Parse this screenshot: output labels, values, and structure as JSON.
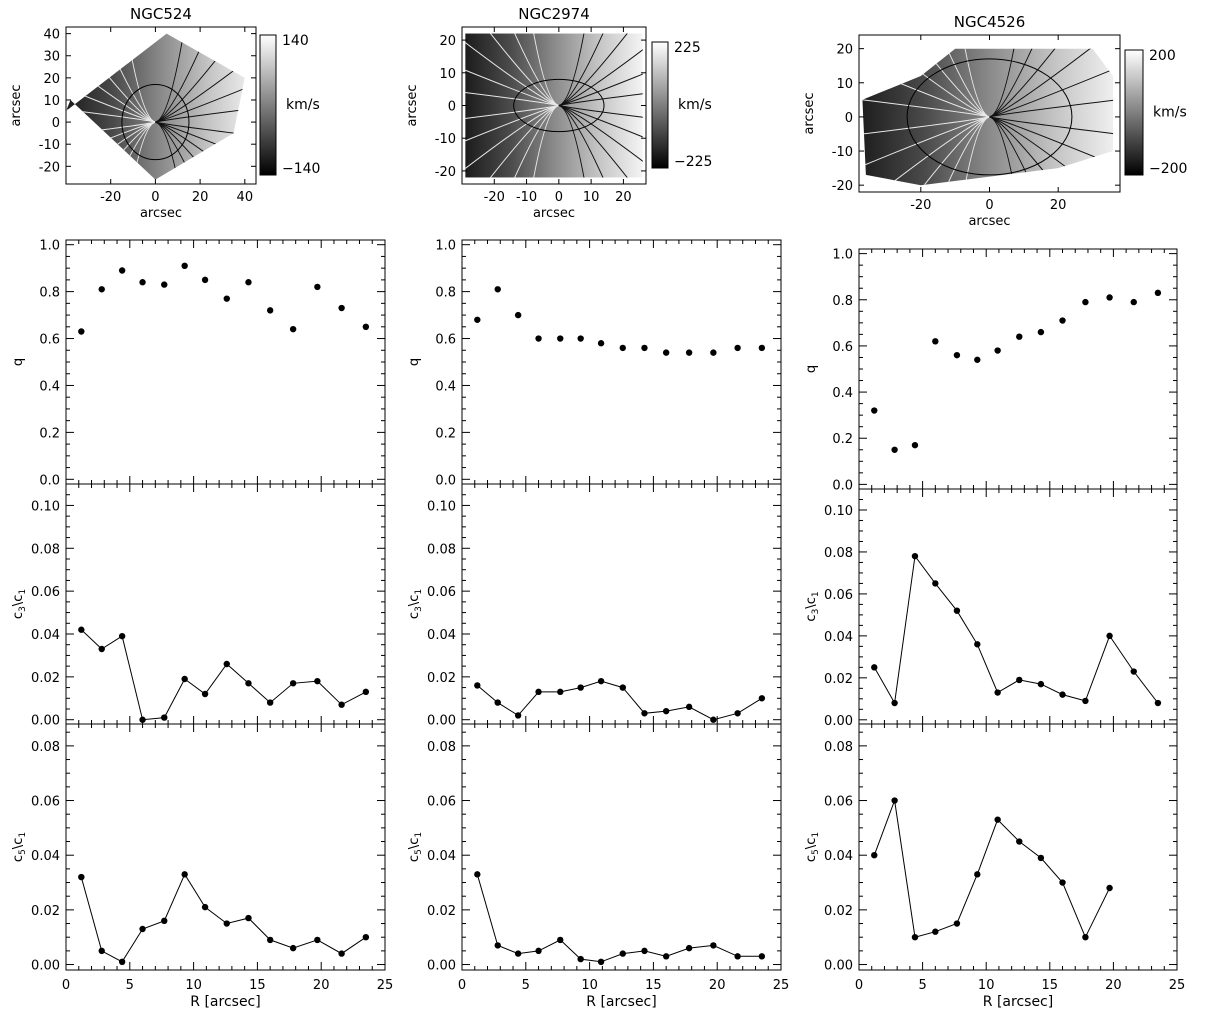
{
  "chart_data": [
    {
      "type": "heatmap",
      "title": "NGC524",
      "xlabel": "arcsec",
      "ylabel": "arcsec",
      "xlim": [
        -40,
        45
      ],
      "ylim": [
        -28,
        43
      ],
      "xticks": [
        -20,
        0,
        20,
        40
      ],
      "yticks": [
        -20,
        -10,
        0,
        10,
        20,
        30,
        40
      ],
      "colorbar": {
        "unit": "km/s",
        "max_label": "140",
        "min_label": "−140",
        "max": 140,
        "min": -140
      }
    },
    {
      "type": "heatmap",
      "title": "NGC2974",
      "xlabel": "arcsec",
      "ylabel": "arcsec",
      "xlim": [
        -30,
        27
      ],
      "ylim": [
        -24,
        24
      ],
      "xticks": [
        -20,
        -10,
        0,
        10,
        20
      ],
      "yticks": [
        -20,
        -10,
        0,
        10,
        20
      ],
      "colorbar": {
        "unit": "km/s",
        "max_label": "225",
        "min_label": "−225",
        "max": 225,
        "min": -225
      }
    },
    {
      "type": "heatmap",
      "title": "NGC4526",
      "xlabel": "arcsec",
      "ylabel": "arcsec",
      "xlim": [
        -38,
        38
      ],
      "ylim": [
        -22,
        24
      ],
      "xticks": [
        -20,
        0,
        20
      ],
      "yticks": [
        -20,
        -10,
        0,
        10,
        20
      ],
      "colorbar": {
        "unit": "km/s",
        "max_label": "200",
        "min_label": "−200",
        "max": 200,
        "min": -200
      }
    },
    {
      "type": "scatter",
      "galaxy": "NGC524",
      "ylabel": "q",
      "ylim": [
        -0.02,
        1.02
      ],
      "yticks": [
        0.0,
        0.2,
        0.4,
        0.6,
        0.8,
        1.0
      ],
      "x": [
        1.2,
        2.8,
        4.4,
        6.0,
        7.7,
        9.3,
        10.9,
        12.6,
        14.3,
        16.0,
        17.8,
        19.7,
        21.6,
        23.5
      ],
      "y": [
        0.63,
        0.81,
        0.89,
        0.84,
        0.83,
        0.91,
        0.85,
        0.77,
        0.84,
        0.72,
        0.64,
        0.82,
        0.73,
        0.65
      ]
    },
    {
      "type": "scatter",
      "galaxy": "NGC2974",
      "ylabel": "q",
      "ylim": [
        -0.02,
        1.02
      ],
      "yticks": [
        0.0,
        0.2,
        0.4,
        0.6,
        0.8,
        1.0
      ],
      "x": [
        1.2,
        2.8,
        4.4,
        6.0,
        7.7,
        9.3,
        10.9,
        12.6,
        14.3,
        16.0,
        17.8,
        19.7,
        21.6,
        23.5
      ],
      "y": [
        0.68,
        0.81,
        0.7,
        0.6,
        0.6,
        0.6,
        0.58,
        0.56,
        0.56,
        0.54,
        0.54,
        0.54,
        0.56,
        0.56
      ]
    },
    {
      "type": "scatter",
      "galaxy": "NGC4526",
      "ylabel": "q",
      "ylim": [
        -0.02,
        1.02
      ],
      "yticks": [
        0.0,
        0.2,
        0.4,
        0.6,
        0.8,
        1.0
      ],
      "x": [
        1.2,
        2.8,
        4.4,
        6.0,
        7.7,
        9.3,
        10.9,
        12.6,
        14.3,
        16.0,
        17.8,
        19.7,
        21.6,
        23.5
      ],
      "y": [
        0.32,
        0.15,
        0.17,
        0.62,
        0.56,
        0.54,
        0.58,
        0.64,
        0.66,
        0.71,
        0.79,
        0.81,
        0.79,
        0.83
      ]
    },
    {
      "type": "line",
      "galaxy": "NGC524",
      "ylabel": "c3/c1",
      "ylim": [
        -0.002,
        0.11
      ],
      "yticks": [
        0.0,
        0.02,
        0.04,
        0.06,
        0.08,
        0.1
      ],
      "x": [
        1.2,
        2.8,
        4.4,
        6.0,
        7.7,
        9.3,
        10.9,
        12.6,
        14.3,
        16.0,
        17.8,
        19.7,
        21.6,
        23.5
      ],
      "y": [
        0.042,
        0.033,
        0.039,
        0.0,
        0.001,
        0.019,
        0.012,
        0.026,
        0.017,
        0.008,
        0.017,
        0.018,
        0.007,
        0.013
      ]
    },
    {
      "type": "line",
      "galaxy": "NGC2974",
      "ylabel": "c3/c1",
      "ylim": [
        -0.002,
        0.11
      ],
      "yticks": [
        0.0,
        0.02,
        0.04,
        0.06,
        0.08,
        0.1
      ],
      "x": [
        1.2,
        2.8,
        4.4,
        6.0,
        7.7,
        9.3,
        10.9,
        12.6,
        14.3,
        16.0,
        17.8,
        19.7,
        21.6,
        23.5
      ],
      "y": [
        0.016,
        0.008,
        0.002,
        0.013,
        0.013,
        0.015,
        0.018,
        0.015,
        0.003,
        0.004,
        0.006,
        0.0,
        0.003,
        0.01
      ]
    },
    {
      "type": "line",
      "galaxy": "NGC4526",
      "ylabel": "c3/c1",
      "ylim": [
        -0.002,
        0.11
      ],
      "yticks": [
        0.0,
        0.02,
        0.04,
        0.06,
        0.08,
        0.1
      ],
      "x": [
        1.2,
        2.8,
        4.4,
        6.0,
        7.7,
        9.3,
        10.9,
        12.6,
        14.3,
        16.0,
        17.8,
        19.7,
        21.6,
        23.5
      ],
      "y": [
        0.025,
        0.008,
        0.078,
        0.065,
        0.052,
        0.036,
        0.013,
        0.019,
        0.017,
        0.012,
        0.009,
        0.04,
        0.023,
        0.008
      ]
    },
    {
      "type": "line",
      "galaxy": "NGC524",
      "ylabel": "c5/c1",
      "ylim": [
        -0.002,
        0.088
      ],
      "yticks": [
        0.0,
        0.02,
        0.04,
        0.06,
        0.08
      ],
      "xlabel": "R [arcsec]",
      "xlim": [
        0,
        25
      ],
      "xticks": [
        0,
        5,
        10,
        15,
        20,
        25
      ],
      "x": [
        1.2,
        2.8,
        4.4,
        6.0,
        7.7,
        9.3,
        10.9,
        12.6,
        14.3,
        16.0,
        17.8,
        19.7,
        21.6,
        23.5
      ],
      "y": [
        0.032,
        0.005,
        0.001,
        0.013,
        0.016,
        0.033,
        0.021,
        0.015,
        0.017,
        0.009,
        0.006,
        0.009,
        0.004,
        0.01
      ]
    },
    {
      "type": "line",
      "galaxy": "NGC2974",
      "ylabel": "c5/c1",
      "ylim": [
        -0.002,
        0.088
      ],
      "yticks": [
        0.0,
        0.02,
        0.04,
        0.06,
        0.08
      ],
      "xlabel": "R [arcsec]",
      "xlim": [
        0,
        25
      ],
      "xticks": [
        0,
        5,
        10,
        15,
        20,
        25
      ],
      "x": [
        1.2,
        2.8,
        4.4,
        6.0,
        7.7,
        9.3,
        10.9,
        12.6,
        14.3,
        16.0,
        17.8,
        19.7,
        21.6,
        23.5
      ],
      "y": [
        0.033,
        0.007,
        0.004,
        0.005,
        0.009,
        0.002,
        0.001,
        0.004,
        0.005,
        0.003,
        0.006,
        0.007,
        0.003,
        0.003
      ]
    },
    {
      "type": "line",
      "galaxy": "NGC4526",
      "ylabel": "c5/c1",
      "ylim": [
        -0.002,
        0.088
      ],
      "yticks": [
        0.0,
        0.02,
        0.04,
        0.06,
        0.08
      ],
      "xlabel": "R [arcsec]",
      "xlim": [
        0,
        25
      ],
      "xticks": [
        0,
        5,
        10,
        15,
        20,
        25
      ],
      "x": [
        1.2,
        2.8,
        4.4,
        6.0,
        7.7,
        9.3,
        10.9,
        12.6,
        14.3,
        16.0,
        17.8,
        19.7
      ],
      "y": [
        0.04,
        0.06,
        0.01,
        0.012,
        0.015,
        0.033,
        0.053,
        0.045,
        0.039,
        0.03,
        0.01,
        0.028
      ]
    }
  ]
}
